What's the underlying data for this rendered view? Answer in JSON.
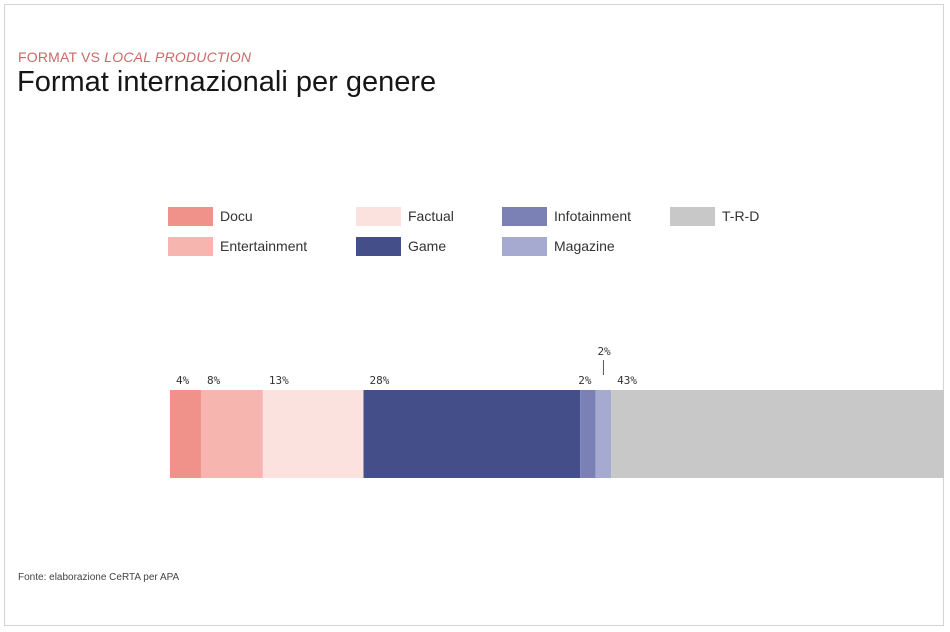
{
  "kicker": {
    "lead": "FORMAT VS ",
    "italic": "LOCAL PRODUCTION"
  },
  "title": "Format internazionali per genere",
  "source": "Fonte: elaborazione CeRTA per APA",
  "colors": {
    "Docu": "#f0928a",
    "Entertainment": "#f6b5ae",
    "Factual": "#fbe2df",
    "Game": "#444e88",
    "Infotainment": "#7b81b5",
    "Magazine": "#a6aad1",
    "T-R-D": "#c8c8c8"
  },
  "chart_data": {
    "type": "bar",
    "orientation": "horizontal-stacked-100",
    "legend": [
      [
        "Docu",
        "Factual",
        "Infotainment",
        "T-R-D"
      ],
      [
        "Entertainment",
        "Game",
        "Magazine"
      ]
    ],
    "categories": [
      "Docu",
      "Entertainment",
      "Factual",
      "Game",
      "Infotainment",
      "Magazine",
      "T-R-D"
    ],
    "values": [
      4,
      8,
      13,
      28,
      2,
      2,
      43
    ],
    "labels": [
      "4%",
      "8%",
      "13%",
      "28%",
      "2%",
      "2%",
      "43%"
    ],
    "unit": "%"
  }
}
